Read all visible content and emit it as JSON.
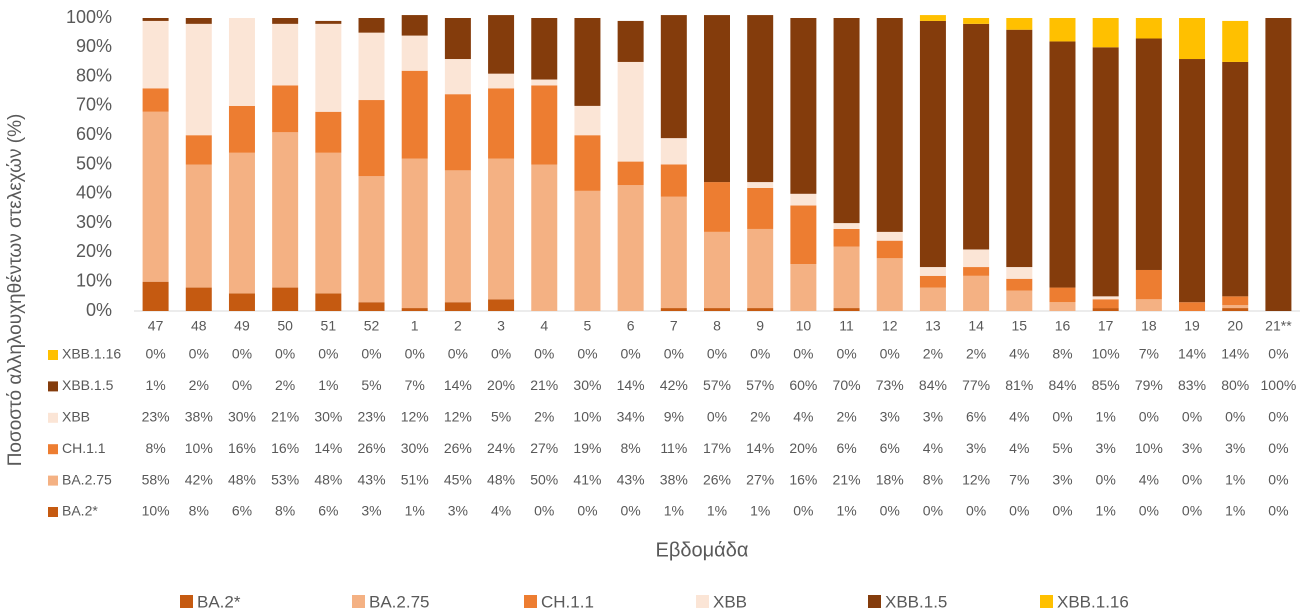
{
  "chart_data": {
    "type": "bar",
    "stacked": true,
    "y_label": "Ποσοστό αλληλουχηθέντων στελεχών (%)",
    "x_label": "Εβδομάδα",
    "categories": [
      "47",
      "48",
      "49",
      "50",
      "51",
      "52",
      "1",
      "2",
      "3",
      "4",
      "5",
      "6",
      "7",
      "8",
      "9",
      "10",
      "11",
      "12",
      "13",
      "14",
      "15",
      "16",
      "17",
      "18",
      "19",
      "20",
      "21**"
    ],
    "ylim": [
      0,
      100
    ],
    "yticks": [
      {
        "value": 0,
        "label": "0%"
      },
      {
        "value": 10,
        "label": "10%"
      },
      {
        "value": 20,
        "label": "20%"
      },
      {
        "value": 30,
        "label": "30%"
      },
      {
        "value": 40,
        "label": "40%"
      },
      {
        "value": 50,
        "label": "50%"
      },
      {
        "value": 60,
        "label": "60%"
      },
      {
        "value": 70,
        "label": "70%"
      },
      {
        "value": 80,
        "label": "80%"
      },
      {
        "value": 90,
        "label": "90%"
      },
      {
        "value": 100,
        "label": "100%"
      }
    ],
    "legend": "bottom",
    "series": [
      {
        "name": "BA.2*",
        "color": "#c55a11",
        "values": [
          10,
          8,
          6,
          8,
          6,
          3,
          1,
          3,
          4,
          0,
          0,
          0,
          1,
          1,
          1,
          0,
          1,
          0,
          0,
          0,
          0,
          0,
          1,
          0,
          0,
          1,
          0
        ],
        "value_labels": [
          "10%",
          "8%",
          "6%",
          "8%",
          "6%",
          "3%",
          "1%",
          "3%",
          "4%",
          "0%",
          "0%",
          "0%",
          "1%",
          "1%",
          "1%",
          "0%",
          "1%",
          "0%",
          "0%",
          "0%",
          "0%",
          "0%",
          "1%",
          "0%",
          "0%",
          "1%",
          "0%"
        ]
      },
      {
        "name": "BA.2.75",
        "color": "#f4b183",
        "values": [
          58,
          42,
          48,
          53,
          48,
          43,
          51,
          45,
          48,
          50,
          41,
          43,
          38,
          26,
          27,
          16,
          21,
          18,
          8,
          12,
          7,
          3,
          0,
          4,
          0,
          1,
          0
        ],
        "value_labels": [
          "58%",
          "42%",
          "48%",
          "53%",
          "48%",
          "43%",
          "51%",
          "45%",
          "48%",
          "50%",
          "41%",
          "43%",
          "38%",
          "26%",
          "27%",
          "16%",
          "21%",
          "18%",
          "8%",
          "12%",
          "7%",
          "3%",
          "0%",
          "4%",
          "0%",
          "1%",
          "0%"
        ]
      },
      {
        "name": "CH.1.1",
        "color": "#ed7d31",
        "values": [
          8,
          10,
          16,
          16,
          14,
          26,
          30,
          26,
          24,
          27,
          19,
          8,
          11,
          17,
          14,
          20,
          6,
          6,
          4,
          3,
          4,
          5,
          3,
          10,
          3,
          3,
          0
        ],
        "value_labels": [
          "8%",
          "10%",
          "16%",
          "16%",
          "14%",
          "26%",
          "30%",
          "26%",
          "24%",
          "27%",
          "19%",
          "8%",
          "11%",
          "17%",
          "14%",
          "20%",
          "6%",
          "6%",
          "4%",
          "3%",
          "4%",
          "5%",
          "3%",
          "10%",
          "3%",
          "3%",
          "0%"
        ]
      },
      {
        "name": "XBB",
        "color": "#fbe5d6",
        "values": [
          23,
          38,
          30,
          21,
          30,
          23,
          12,
          12,
          5,
          2,
          10,
          34,
          9,
          0,
          2,
          4,
          2,
          3,
          3,
          6,
          4,
          0,
          1,
          0,
          0,
          0,
          0
        ],
        "value_labels": [
          "23%",
          "38%",
          "30%",
          "21%",
          "30%",
          "23%",
          "12%",
          "12%",
          "5%",
          "2%",
          "10%",
          "34%",
          "9%",
          "0%",
          "2%",
          "4%",
          "2%",
          "3%",
          "3%",
          "6%",
          "4%",
          "0%",
          "1%",
          "0%",
          "0%",
          "0%",
          "0%"
        ]
      },
      {
        "name": "XBB.1.5",
        "color": "#843c0c",
        "values": [
          1,
          2,
          0,
          2,
          1,
          5,
          7,
          14,
          20,
          21,
          30,
          14,
          42,
          57,
          57,
          60,
          70,
          73,
          84,
          77,
          81,
          84,
          85,
          79,
          83,
          80,
          100
        ],
        "value_labels": [
          "1%",
          "2%",
          "0%",
          "2%",
          "1%",
          "5%",
          "7%",
          "14%",
          "20%",
          "21%",
          "30%",
          "14%",
          "42%",
          "57%",
          "57%",
          "60%",
          "70%",
          "73%",
          "84%",
          "77%",
          "81%",
          "84%",
          "85%",
          "79%",
          "83%",
          "80%",
          "100%"
        ]
      },
      {
        "name": "XBB.1.16",
        "color": "#ffc000",
        "values": [
          0,
          0,
          0,
          0,
          0,
          0,
          0,
          0,
          0,
          0,
          0,
          0,
          0,
          0,
          0,
          0,
          0,
          0,
          2,
          2,
          4,
          8,
          10,
          7,
          14,
          14,
          0
        ],
        "value_labels": [
          "0%",
          "0%",
          "0%",
          "0%",
          "0%",
          "0%",
          "0%",
          "0%",
          "0%",
          "0%",
          "0%",
          "0%",
          "0%",
          "0%",
          "0%",
          "0%",
          "0%",
          "0%",
          "2%",
          "2%",
          "4%",
          "8%",
          "10%",
          "7%",
          "14%",
          "14%",
          "0%"
        ]
      }
    ]
  }
}
